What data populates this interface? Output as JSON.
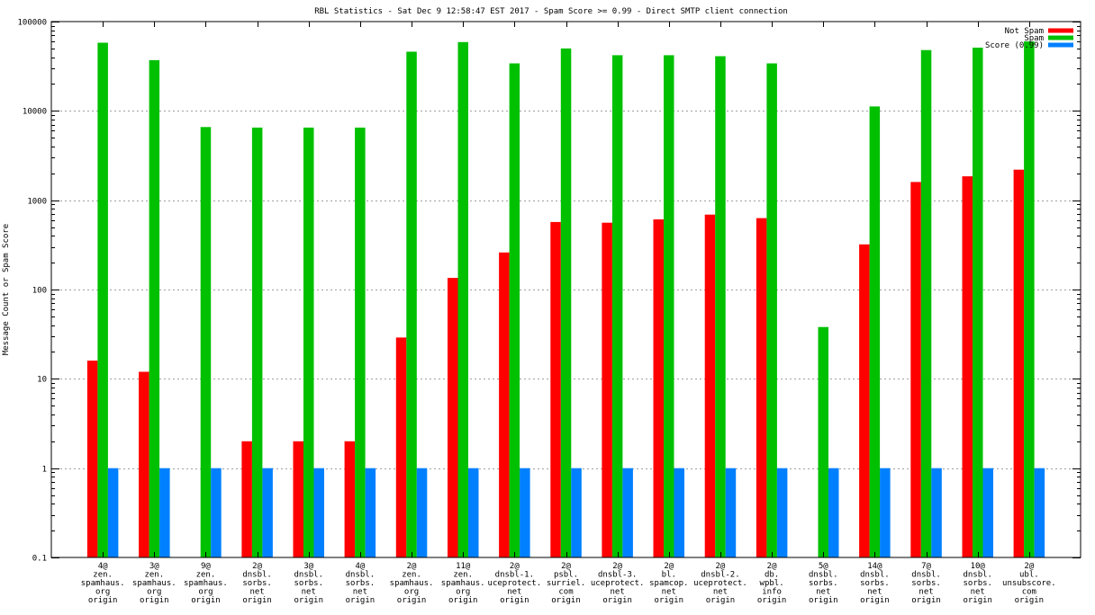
{
  "chart_data": {
    "type": "bar",
    "title": "RBL Statistics - Sat Dec  9 12:58:47 EST 2017 - Spam Score >= 0.99 - Direct SMTP client connection",
    "xlabel": "",
    "ylabel": "Message Count or Spam Score",
    "yscale": "log",
    "ylim": [
      0.1,
      100000
    ],
    "yticks": [
      "0.1",
      "1",
      "10",
      "100",
      "1000",
      "10000",
      "100000"
    ],
    "grid": true,
    "legend_position": "top-right",
    "categories": [
      [
        "4@",
        "zen.",
        "spamhaus.",
        "org",
        "origin"
      ],
      [
        "3@",
        "zen.",
        "spamhaus.",
        "org",
        "origin"
      ],
      [
        "9@",
        "zen.",
        "spamhaus.",
        "org",
        "origin"
      ],
      [
        "2@",
        "dnsbl.",
        "sorbs.",
        "net",
        "origin"
      ],
      [
        "3@",
        "dnsbl.",
        "sorbs.",
        "net",
        "origin"
      ],
      [
        "4@",
        "dnsbl.",
        "sorbs.",
        "net",
        "origin"
      ],
      [
        "2@",
        "zen.",
        "spamhaus.",
        "org",
        "origin"
      ],
      [
        "11@",
        "zen.",
        "spamhaus.",
        "org",
        "origin"
      ],
      [
        "2@",
        "dnsbl-1.",
        "uceprotect.",
        "net",
        "origin"
      ],
      [
        "2@",
        "psbl.",
        "surriel.",
        "com",
        "origin"
      ],
      [
        "2@",
        "dnsbl-3.",
        "uceprotect.",
        "net",
        "origin"
      ],
      [
        "2@",
        "bl.",
        "spamcop.",
        "net",
        "origin"
      ],
      [
        "2@",
        "dnsbl-2.",
        "uceprotect.",
        "net",
        "origin"
      ],
      [
        "2@",
        "db.",
        "wpbl.",
        "info",
        "origin"
      ],
      [
        "5@",
        "dnsbl.",
        "sorbs.",
        "net",
        "origin"
      ],
      [
        "14@",
        "dnsbl.",
        "sorbs.",
        "net",
        "origin"
      ],
      [
        "7@",
        "dnsbl.",
        "sorbs.",
        "net",
        "origin"
      ],
      [
        "10@",
        "dnsbl.",
        "sorbs.",
        "net",
        "origin"
      ],
      [
        "2@",
        "ubl.",
        "unsubscore.",
        "com",
        "origin"
      ]
    ],
    "series": [
      {
        "name": "Not Spam",
        "color": "#ff0000",
        "values": [
          16,
          12,
          null,
          2,
          2,
          2,
          29,
          135,
          260,
          570,
          560,
          610,
          690,
          630,
          null,
          320,
          1600,
          1850,
          2200
        ]
      },
      {
        "name": "Spam",
        "color": "#00c000",
        "values": [
          58000,
          37000,
          6600,
          6500,
          6500,
          6500,
          46000,
          59000,
          34000,
          50000,
          42000,
          42000,
          41000,
          34000,
          38,
          11200,
          48000,
          51000,
          60000
        ]
      },
      {
        "name": "Score (0.99)",
        "color": "#0080ff",
        "values": [
          1,
          1,
          1,
          1,
          1,
          1,
          1,
          1,
          1,
          1,
          1,
          1,
          1,
          1,
          1,
          1,
          1,
          1,
          1
        ]
      }
    ]
  }
}
